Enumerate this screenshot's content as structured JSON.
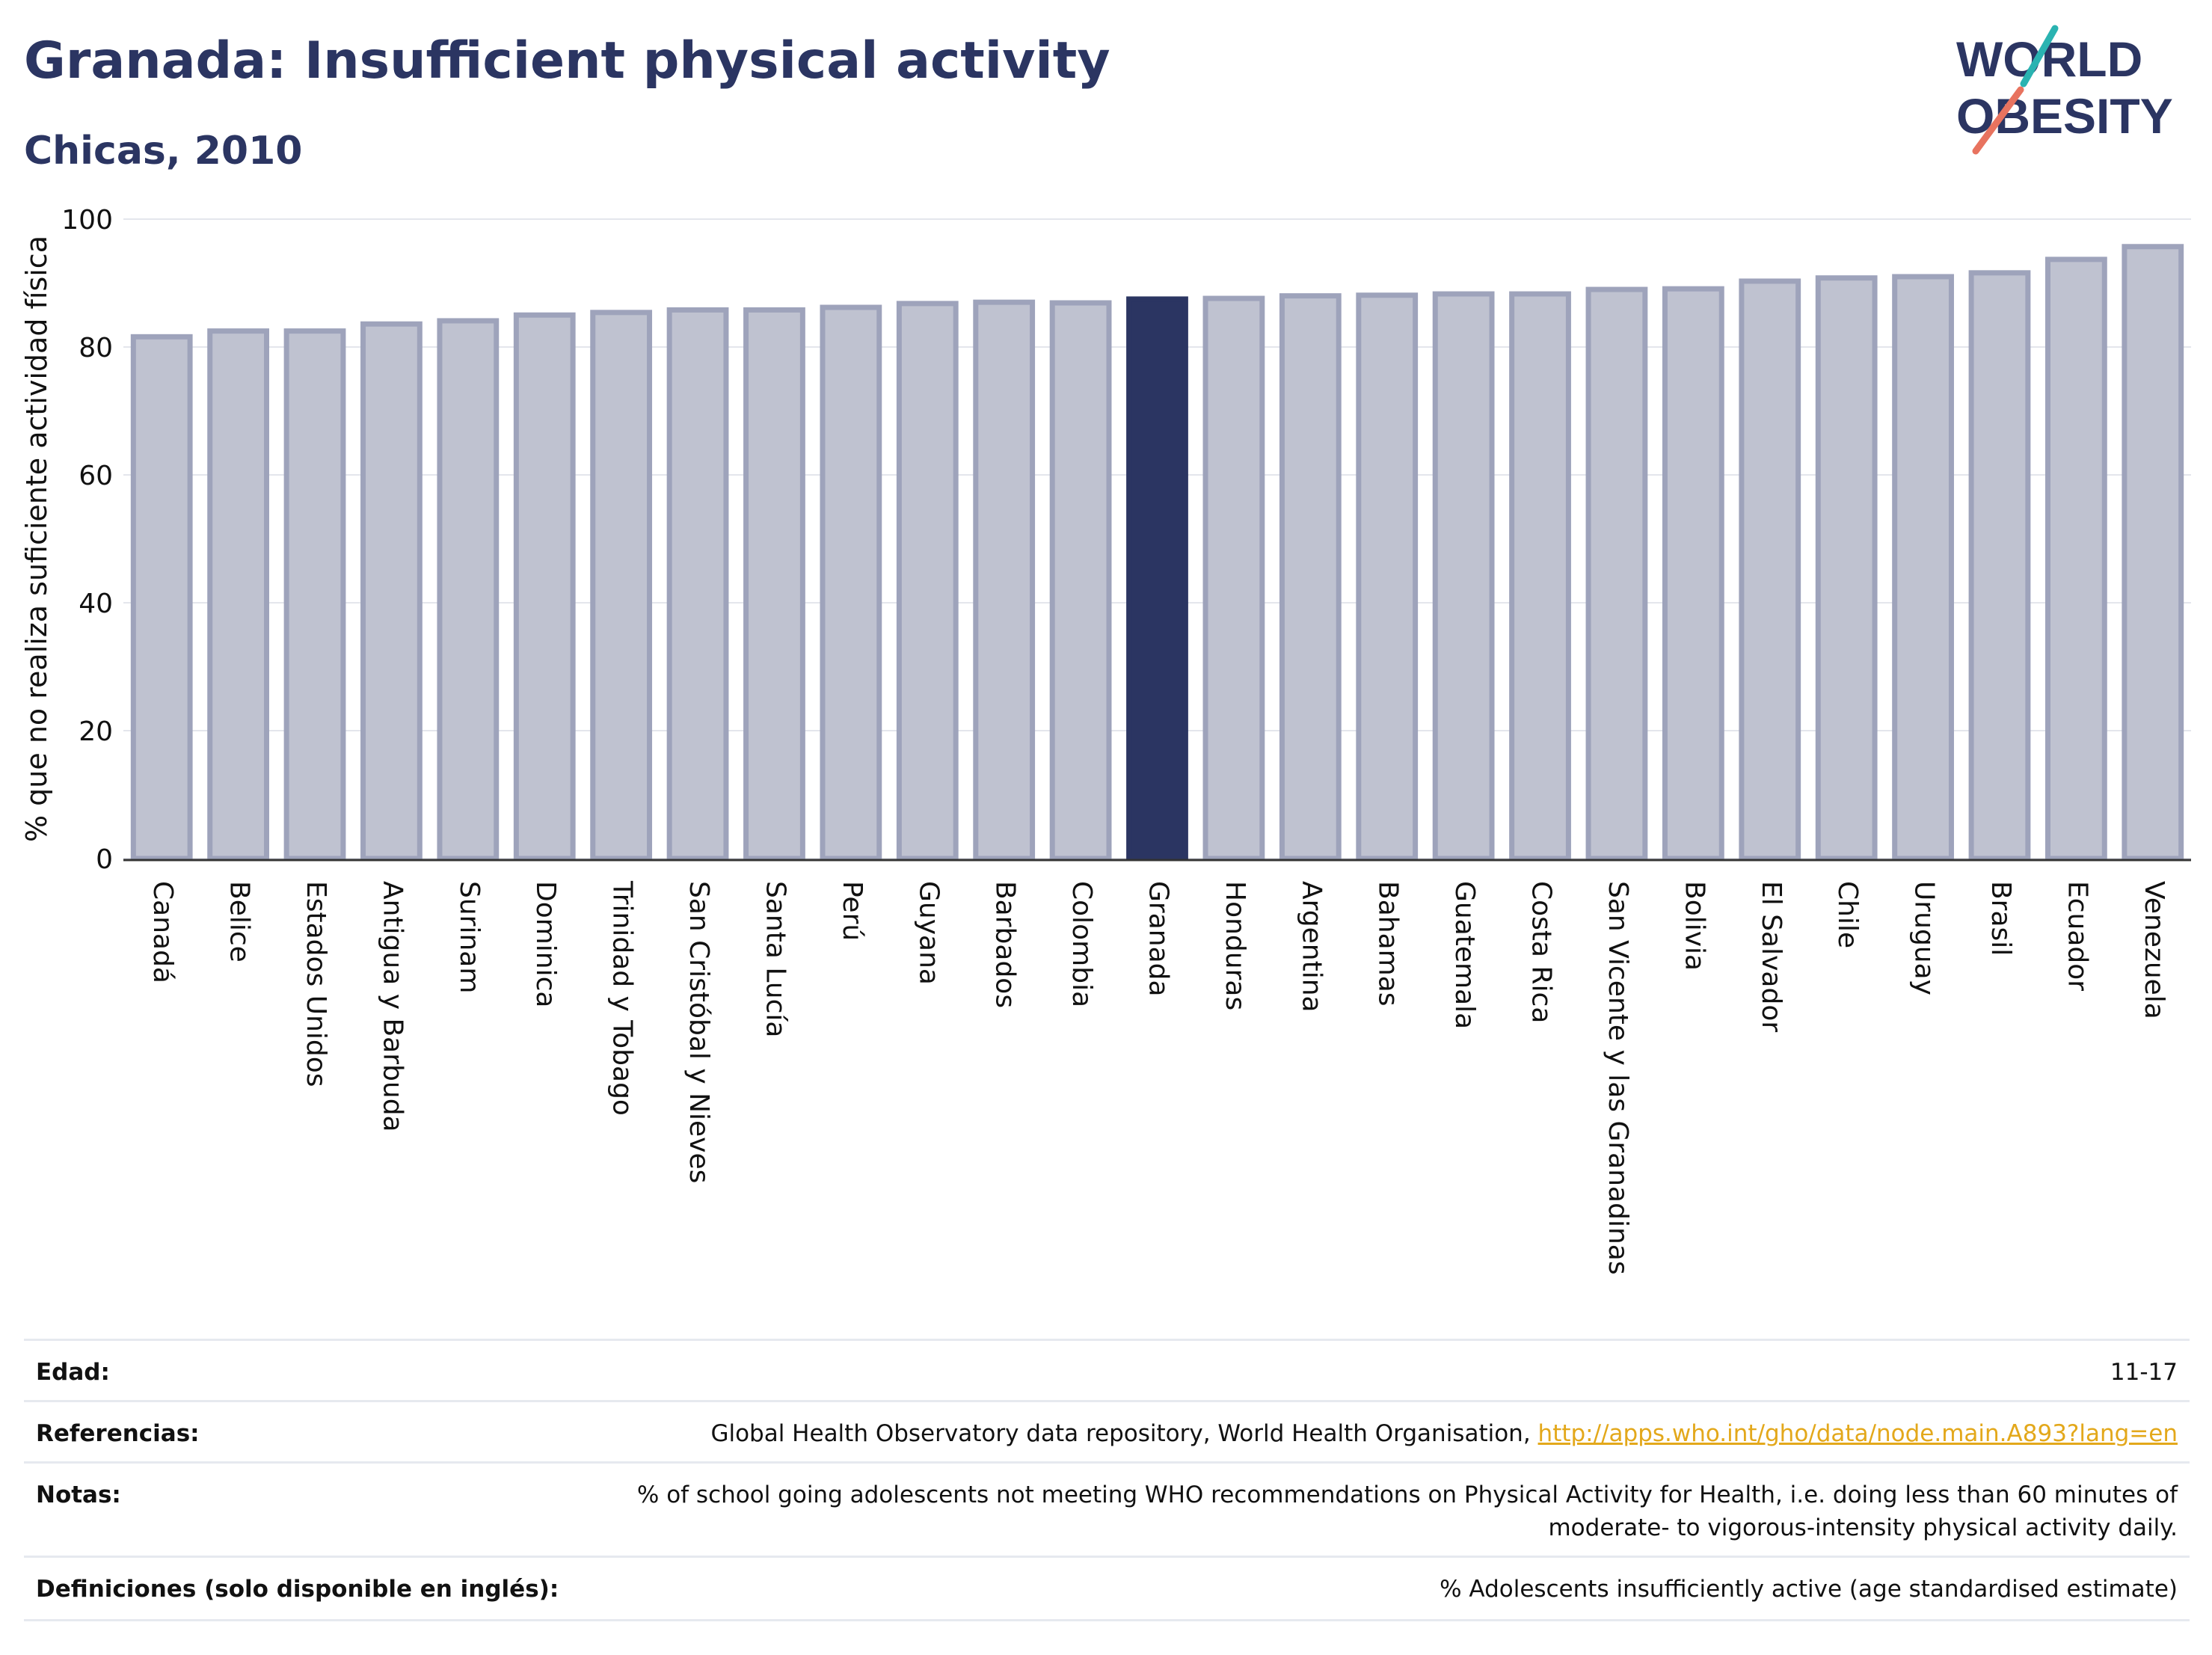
{
  "header": {
    "title": "Granada: Insufficient physical activity",
    "subtitle": "Chicas, 2010"
  },
  "logo": {
    "line1": "WORLD",
    "line2": "OBESITY",
    "colors": {
      "text": "#2b3562",
      "slash_teal": "#2ab3b1",
      "slash_red": "#e8735f"
    }
  },
  "chart_data": {
    "type": "bar",
    "ylabel": "% que no realiza suficiente actividad física",
    "xlabel": "",
    "ylim": [
      0,
      100
    ],
    "yticks": [
      0,
      20,
      40,
      60,
      80,
      100
    ],
    "grid": true,
    "highlight": "Granada",
    "colors": {
      "bar": "#bfc2d0",
      "bar_edge": "#9ea3bb",
      "highlight": "#2b3562"
    },
    "categories": [
      "Canadá",
      "Belice",
      "Estados Unidos",
      "Antigua y Barbuda",
      "Surinam",
      "Dominica",
      "Trinidad y Tobago",
      "San Cristóbal y Nieves",
      "Santa Lucía",
      "Perú",
      "Guyana",
      "Barbados",
      "Colombia",
      "Granada",
      "Honduras",
      "Argentina",
      "Bahamas",
      "Guatemala",
      "Costa Rica",
      "San Vicente y las Granadinas",
      "Bolivia",
      "El Salvador",
      "Chile",
      "Uruguay",
      "Brasil",
      "Ecuador",
      "Venezuela"
    ],
    "values": [
      81.6,
      82.5,
      82.5,
      83.6,
      84.1,
      85.0,
      85.4,
      85.8,
      85.8,
      86.2,
      86.8,
      87.0,
      86.9,
      87.5,
      87.6,
      88.0,
      88.1,
      88.3,
      88.3,
      89.0,
      89.1,
      90.3,
      90.8,
      91.0,
      91.6,
      93.7,
      95.7
    ]
  },
  "meta": {
    "edad_label": "Edad:",
    "edad_value": "11-17",
    "ref_label": "Referencias:",
    "ref_text": "Global Health Observatory data repository, World Health Organisation, ",
    "ref_link": "http://apps.who.int/gho/data/node.main.A893?lang=en",
    "notas_label": "Notas:",
    "notas_line1": "% of school going adolescents not meeting WHO recommendations on Physical Activity for Health, i.e. doing less than 60 minutes of",
    "notas_line2": "moderate- to vigorous-intensity physical activity daily.",
    "def_label": "Definiciones (solo disponible en inglés):",
    "def_value": "% Adolescents insufficiently active (age standardised estimate)"
  }
}
